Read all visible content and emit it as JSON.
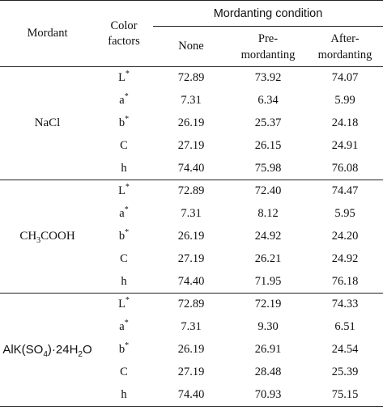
{
  "header": {
    "mordant": "Mordant",
    "color_factors_line1": "Color",
    "color_factors_line2": "factors",
    "mordanting_condition": "Mordanting  condition",
    "none": "None",
    "pre_line1": "Pre-",
    "pre_line2": "mordanting",
    "after_line1": "After-",
    "after_line2": "mordanting"
  },
  "groups": [
    {
      "mordant": "NaCl",
      "rows": [
        {
          "factor": "L",
          "sup": "*",
          "none": "72.89",
          "pre": "73.92",
          "after": "74.07"
        },
        {
          "factor": "a",
          "sup": "*",
          "none": "7.31",
          "pre": "6.34",
          "after": "5.99"
        },
        {
          "factor": "b",
          "sup": "*",
          "none": "26.19",
          "pre": "25.37",
          "after": "24.18"
        },
        {
          "factor": "C",
          "sup": "",
          "none": "27.19",
          "pre": "26.15",
          "after": "24.91"
        },
        {
          "factor": "h",
          "sup": "",
          "none": "74.40",
          "pre": "75.98",
          "after": "76.08"
        }
      ]
    },
    {
      "mordant_parts": [
        "CH",
        "3",
        "COOH"
      ],
      "rows": [
        {
          "factor": "L",
          "sup": "*",
          "none": "72.89",
          "pre": "72.40",
          "after": "74.47"
        },
        {
          "factor": "a",
          "sup": "*",
          "none": "7.31",
          "pre": "8.12",
          "after": "5.95"
        },
        {
          "factor": "b",
          "sup": "*",
          "none": "26.19",
          "pre": "24.92",
          "after": "24.20"
        },
        {
          "factor": "C",
          "sup": "",
          "none": "27.19",
          "pre": "26.21",
          "after": "24.92"
        },
        {
          "factor": "h",
          "sup": "",
          "none": "74.40",
          "pre": "71.95",
          "after": "76.18"
        }
      ]
    },
    {
      "mordant_parts": [
        "AlK(SO",
        "4",
        ")·24H",
        "2",
        "O"
      ],
      "rows": [
        {
          "factor": "L",
          "sup": "*",
          "none": "72.89",
          "pre": "72.19",
          "after": "74.33"
        },
        {
          "factor": "a",
          "sup": "*",
          "none": "7.31",
          "pre": "9.30",
          "after": "6.51"
        },
        {
          "factor": "b",
          "sup": "*",
          "none": "26.19",
          "pre": "26.91",
          "after": "24.54"
        },
        {
          "factor": "C",
          "sup": "",
          "none": "27.19",
          "pre": "28.48",
          "after": "25.39"
        },
        {
          "factor": "h",
          "sup": "",
          "none": "74.40",
          "pre": "70.93",
          "after": "75.15"
        }
      ]
    }
  ]
}
